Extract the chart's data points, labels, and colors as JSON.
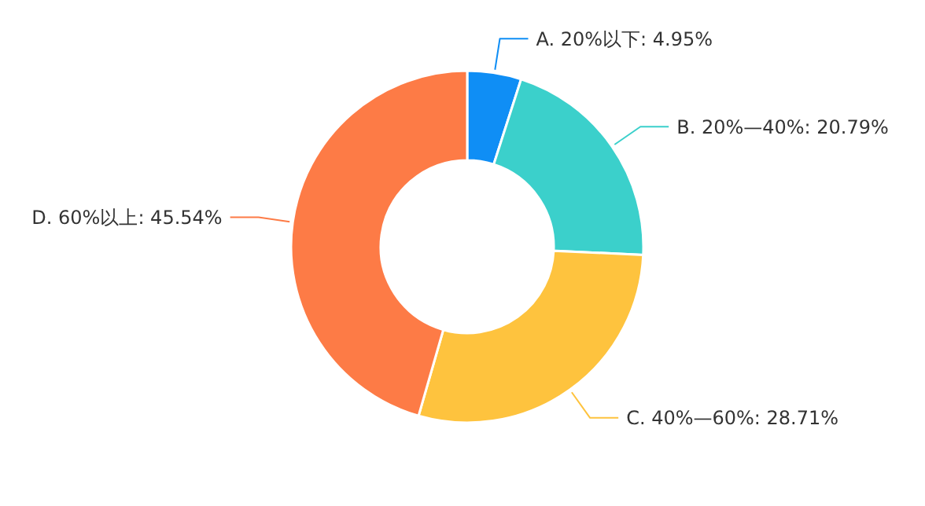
{
  "chart_data": {
    "type": "donut",
    "categories": [
      "A. 20%以下",
      "B. 20%—40%",
      "C. 40%—60%",
      "D. 60%以上"
    ],
    "values": [
      4.95,
      20.79,
      28.71,
      45.54
    ],
    "value_labels": [
      "4.95%",
      "20.79%",
      "28.71%",
      "45.54%"
    ],
    "colors": [
      "#0f8ef5",
      "#3bd0cb",
      "#fec33e",
      "#fd7b46"
    ]
  }
}
